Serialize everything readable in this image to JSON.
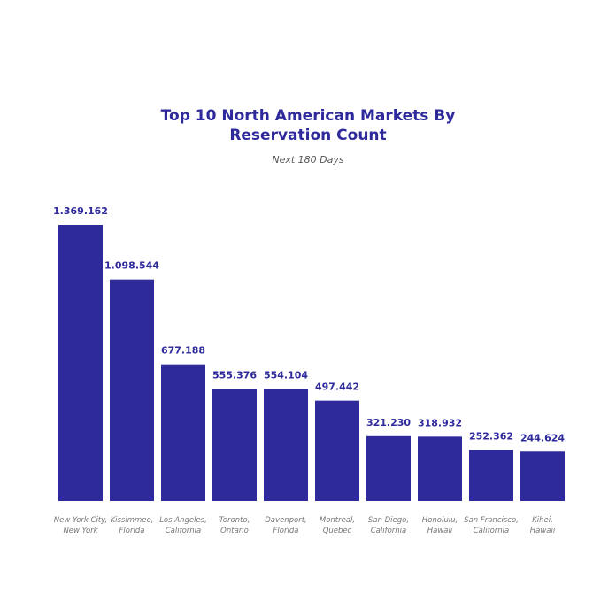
{
  "chart_data": {
    "type": "bar",
    "title_lines": [
      "Top 10 North American Markets By",
      "Reservation Count"
    ],
    "subtitle": "Next 180 Days",
    "categories": [
      [
        "New York City,",
        "New York"
      ],
      [
        "Kissimmee,",
        "Florida"
      ],
      [
        "Los Angeles,",
        "California"
      ],
      [
        "Toronto,",
        "Ontario"
      ],
      [
        "Davenport,",
        "Florida"
      ],
      [
        "Montreal,",
        "Quebec"
      ],
      [
        "San Diego,",
        "California"
      ],
      [
        "Honolulu,",
        "Hawaii"
      ],
      [
        "San Francisco,",
        "California"
      ],
      [
        "Kihei,",
        "Hawaii"
      ]
    ],
    "values": [
      1369162,
      1098544,
      677188,
      555376,
      554104,
      497442,
      321230,
      318932,
      252362,
      244624
    ],
    "data_labels": [
      "1.369.162",
      "1.098.544",
      "677.188",
      "555.376",
      "554.104",
      "497.442",
      "321.230",
      "318.932",
      "252.362",
      "244.624"
    ],
    "ylim": [
      0,
      1369162
    ],
    "grid": false,
    "bar_color": "#2e2a9c",
    "label_color": "#2e2a9c",
    "category_color": "#777777"
  }
}
